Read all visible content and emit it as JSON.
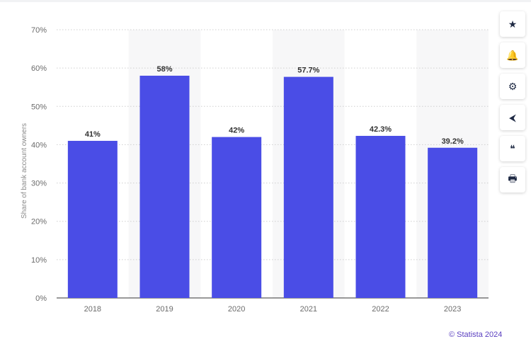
{
  "chart_data": {
    "type": "bar",
    "categories": [
      "2018",
      "2019",
      "2020",
      "2021",
      "2022",
      "2023"
    ],
    "values": [
      41,
      58,
      42,
      57.7,
      42.3,
      39.2
    ],
    "data_labels": [
      "41%",
      "58%",
      "42%",
      "57.7%",
      "42.3%",
      "39.2%"
    ],
    "ylabel": "Share of bank account owners",
    "ylim": [
      0,
      70
    ],
    "yticks": [
      "0%",
      "10%",
      "20%",
      "30%",
      "40%",
      "50%",
      "60%",
      "70%"
    ],
    "ytick_values": [
      0,
      10,
      20,
      30,
      40,
      50,
      60,
      70
    ],
    "grid": true,
    "bar_color": "#4a4de6"
  },
  "sidebar": [
    {
      "icon": "star-icon",
      "glyph": "★"
    },
    {
      "icon": "bell-icon",
      "glyph": "🔔"
    },
    {
      "icon": "gear-icon",
      "glyph": "⚙"
    },
    {
      "icon": "share-icon",
      "glyph": "<"
    },
    {
      "icon": "quote-icon",
      "glyph": "❝"
    },
    {
      "icon": "print-icon",
      "glyph": "🖶"
    }
  ],
  "credit": "© Statista 2024"
}
